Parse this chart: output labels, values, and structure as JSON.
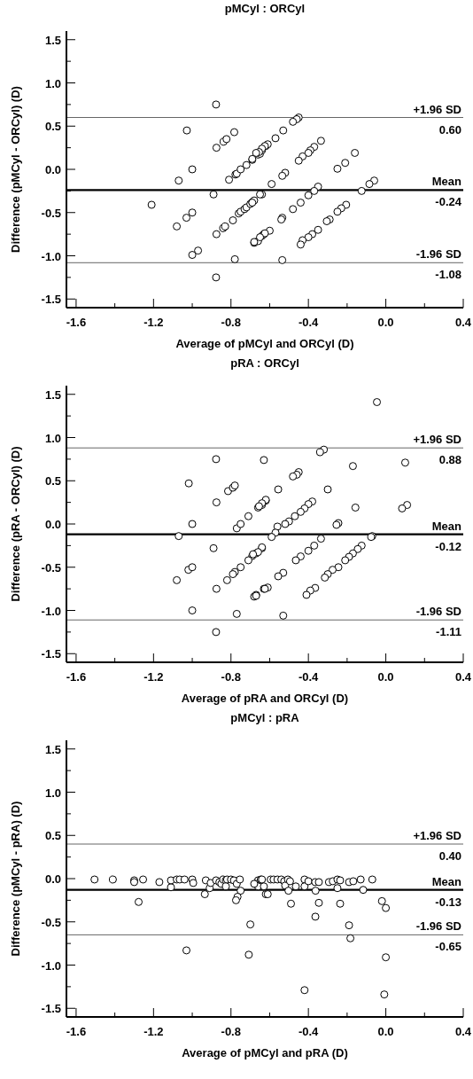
{
  "chart_data": [
    {
      "type": "scatter",
      "title": "pMCyl : ORCyl",
      "xlabel": "Average of pMCyl and ORCyl (D)",
      "ylabel": "Difference (pMCyl - ORCyl) (D)",
      "marker": "circle",
      "grid": false,
      "xlim": [
        -1.65,
        0.4
      ],
      "ylim": [
        -1.6,
        1.6
      ],
      "xticks": [
        -1.6,
        {
          "value": -1.4,
          "label": null
        },
        -1.2,
        {
          "value": -1.0,
          "label": null
        },
        -0.8,
        {
          "value": -0.6,
          "label": null
        },
        -0.4,
        {
          "value": -0.2,
          "label": null
        },
        {
          "value": 0,
          "label": "0.0"
        },
        {
          "value": 0.2,
          "label": null
        },
        0.4
      ],
      "yticks": [
        -1.5,
        {
          "value": -1.25,
          "label": null
        },
        {
          "value": -1,
          "label": "-1.0"
        },
        {
          "value": -0.75,
          "label": null
        },
        -0.5,
        {
          "value": -0.25,
          "label": null
        },
        {
          "value": 0,
          "label": "0.0"
        },
        {
          "value": 0.25,
          "label": null
        },
        0.5,
        {
          "value": 0.75,
          "label": null
        },
        {
          "value": 1,
          "label": "1.0"
        },
        {
          "value": 1.25,
          "label": null
        },
        1.5
      ],
      "annotations": [
        {
          "text": "0.60",
          "y": 0.6
        },
        {
          "text": "-0.24",
          "y": -0.24
        },
        {
          "text": "-1.08",
          "y": -1.08
        }
      ],
      "ref_lines": [
        {
          "axis": "y",
          "value": 0.6,
          "label": "+1.96 SD",
          "color": "#666666"
        },
        {
          "axis": "y",
          "value": -0.24,
          "label": "Mean",
          "color": "#000000"
        },
        {
          "axis": "y",
          "value": -1.08,
          "label": "-1.96 SD",
          "color": "#666666"
        }
      ],
      "series": [
        {
          "color": "#000000",
          "x": [
            -0.877,
            -1.028,
            -0.875,
            -0.838,
            -0.823,
            -0.783,
            -1.0,
            -1.07,
            -0.81,
            -0.777,
            -0.77,
            -0.75,
            -0.72,
            -0.69,
            -0.66,
            -0.65,
            -0.64,
            -0.62,
            -1.21,
            -0.89,
            -0.64,
            -1.0,
            -1.03,
            -1.08,
            -0.875,
            -0.84,
            -0.83,
            -0.79,
            -0.76,
            -0.75,
            -0.73,
            -0.72,
            -0.7,
            -0.69,
            -0.68,
            -1.0,
            -0.97,
            -0.78,
            -0.877,
            -0.68,
            -0.66,
            -0.64,
            -0.63,
            -0.45,
            -0.46,
            -0.48,
            -0.53,
            -0.57,
            -0.61,
            -0.625,
            -0.64,
            -0.655,
            -0.67,
            -0.69,
            -0.335,
            -0.37,
            -0.39,
            -0.4,
            -0.43,
            -0.45,
            -0.52,
            -0.535,
            -0.59,
            -0.65,
            -0.69,
            -0.16,
            -0.21,
            -0.25,
            -0.06,
            -0.085,
            -0.125,
            -0.35,
            -0.37,
            -0.4,
            -0.44,
            -0.48,
            -0.535,
            -0.54,
            -0.6,
            -0.625,
            -0.65,
            -0.68,
            -0.205,
            -0.23,
            -0.25,
            -0.29,
            -0.305,
            -0.35,
            -0.38,
            -0.4,
            -0.43,
            -0.44,
            -0.535
          ],
          "values": [
            0.75,
            0.45,
            0.25,
            0.32,
            0.35,
            0.43,
            0.0,
            -0.13,
            -0.12,
            -0.06,
            -0.05,
            0.0,
            0.05,
            0.11,
            0.17,
            0.18,
            0.22,
            0.27,
            -0.41,
            -0.29,
            -0.29,
            -0.5,
            -0.56,
            -0.66,
            -0.75,
            -0.68,
            -0.66,
            -0.59,
            -0.51,
            -0.49,
            -0.46,
            -0.44,
            -0.4,
            -0.38,
            -0.36,
            -0.99,
            -0.94,
            -1.04,
            -1.25,
            -0.85,
            -0.83,
            -0.77,
            -0.75,
            0.6,
            0.58,
            0.55,
            0.45,
            0.36,
            0.29,
            0.27,
            0.24,
            0.2,
            0.19,
            0.12,
            0.33,
            0.26,
            0.22,
            0.19,
            0.15,
            0.1,
            -0.04,
            -0.075,
            -0.17,
            -0.29,
            -0.385,
            0.19,
            0.075,
            0.007,
            -0.13,
            -0.17,
            -0.25,
            -0.2,
            -0.25,
            -0.3,
            -0.385,
            -0.46,
            -0.56,
            -0.58,
            -0.71,
            -0.74,
            -0.785,
            -0.84,
            -0.41,
            -0.45,
            -0.49,
            -0.58,
            -0.6,
            -0.7,
            -0.75,
            -0.785,
            -0.82,
            -0.87,
            -1.05
          ]
        }
      ]
    },
    {
      "type": "scatter",
      "title": "pRA : ORCyl",
      "xlabel": "Average of pRA and ORCyl (D)",
      "ylabel": "Difference (pRA - ORCyl) (D)",
      "marker": "circle",
      "grid": false,
      "xlim": [
        -1.65,
        0.4
      ],
      "ylim": [
        -1.6,
        1.6
      ],
      "xticks": [
        -1.6,
        {
          "value": -1.4,
          "label": null
        },
        -1.2,
        {
          "value": -1.0,
          "label": null
        },
        -0.8,
        {
          "value": -0.6,
          "label": null
        },
        -0.4,
        {
          "value": -0.2,
          "label": null
        },
        {
          "value": 0,
          "label": "0.0"
        },
        {
          "value": 0.2,
          "label": null
        },
        0.4
      ],
      "yticks": [
        -1.5,
        {
          "value": -1.25,
          "label": null
        },
        {
          "value": -1,
          "label": "-1.0"
        },
        {
          "value": -0.75,
          "label": null
        },
        -0.5,
        {
          "value": -0.25,
          "label": null
        },
        {
          "value": 0,
          "label": "0.0"
        },
        {
          "value": 0.25,
          "label": null
        },
        0.5,
        {
          "value": 0.75,
          "label": null
        },
        {
          "value": 1,
          "label": "1.0"
        },
        {
          "value": 1.25,
          "label": null
        },
        1.5
      ],
      "annotations": [
        {
          "text": "0.88",
          "y": 0.88
        },
        {
          "text": "-0.12",
          "y": -0.12
        },
        {
          "text": "-1.11",
          "y": -1.11
        }
      ],
      "ref_lines": [
        {
          "axis": "y",
          "value": 0.88,
          "label": "+1.96 SD",
          "color": "#666666"
        },
        {
          "axis": "y",
          "value": -0.12,
          "label": "Mean",
          "color": "#000000"
        },
        {
          "axis": "y",
          "value": -1.11,
          "label": "-1.96 SD",
          "color": "#666666"
        }
      ],
      "series": [
        {
          "color": "#000000",
          "x": [
            -0.877,
            -1.018,
            -0.875,
            -0.815,
            -0.79,
            -0.78,
            -1.0,
            -1.07,
            -0.77,
            -0.75,
            -0.71,
            -0.66,
            -0.64,
            -0.62,
            -0.63,
            -0.89,
            -0.64,
            -0.67,
            -0.69,
            -0.71,
            -0.75,
            -0.78,
            -0.79,
            -0.82,
            -1.02,
            -1.0,
            -1.08,
            -0.875,
            -1.0,
            -0.77,
            -0.877,
            -0.68,
            -0.67,
            -0.63,
            -0.046,
            -0.32,
            -0.34,
            -0.17,
            0.1,
            -0.45,
            -0.46,
            -0.48,
            -0.556,
            -0.3,
            -0.62,
            -0.64,
            -0.655,
            -0.38,
            -0.4,
            -0.42,
            -0.44,
            -0.47,
            -0.5,
            -0.52,
            -0.56,
            -0.57,
            -0.59,
            -0.157,
            -0.245,
            -0.255,
            0.11,
            0.084,
            -0.07,
            -0.076,
            -0.335,
            -0.37,
            -0.4,
            -0.44,
            -0.465,
            -0.53,
            -0.556,
            -0.61,
            -0.625,
            -0.67,
            -0.64,
            -0.66,
            -0.686,
            -0.125,
            -0.145,
            -0.17,
            -0.19,
            -0.21,
            -0.245,
            -0.275,
            -0.3,
            -0.315,
            -0.365,
            -0.39,
            -0.41,
            -0.53
          ],
          "values": [
            0.75,
            0.47,
            0.25,
            0.38,
            0.42,
            0.445,
            0.0,
            -0.14,
            -0.05,
            0.0,
            0.09,
            0.19,
            0.22,
            0.27,
            0.74,
            -0.28,
            -0.28,
            -0.34,
            -0.37,
            -0.42,
            -0.5,
            -0.555,
            -0.58,
            -0.65,
            -0.53,
            -0.5,
            -0.65,
            -0.75,
            -1.0,
            -1.04,
            -1.25,
            -0.84,
            -0.82,
            -0.75,
            1.41,
            0.86,
            0.83,
            0.67,
            0.71,
            0.6,
            0.57,
            0.55,
            0.4,
            0.4,
            0.28,
            0.24,
            0.205,
            0.26,
            0.23,
            0.18,
            0.14,
            0.09,
            0.03,
            0.0,
            -0.03,
            -0.1,
            -0.15,
            0.19,
            0.01,
            -0.01,
            0.22,
            0.18,
            -0.14,
            -0.15,
            -0.17,
            -0.25,
            -0.31,
            -0.375,
            -0.42,
            -0.565,
            -0.605,
            -0.735,
            -0.75,
            -0.83,
            -0.27,
            -0.325,
            -0.35,
            -0.25,
            -0.29,
            -0.34,
            -0.38,
            -0.42,
            -0.5,
            -0.53,
            -0.58,
            -0.62,
            -0.74,
            -0.77,
            -0.82,
            -1.06
          ]
        }
      ]
    },
    {
      "type": "scatter",
      "title": "pMCyl : pRA",
      "xlabel": "Average of pMCyl and pRA (D)",
      "ylabel": "Difference (pMCyl - pRA) (D)",
      "marker": "circle",
      "grid": false,
      "xlim": [
        -1.65,
        0.4
      ],
      "ylim": [
        -1.6,
        1.6
      ],
      "xticks": [
        -1.6,
        {
          "value": -1.4,
          "label": null
        },
        -1.2,
        {
          "value": -1.0,
          "label": null
        },
        -0.8,
        {
          "value": -0.6,
          "label": null
        },
        -0.4,
        {
          "value": -0.2,
          "label": null
        },
        {
          "value": 0,
          "label": "0.0"
        },
        {
          "value": 0.2,
          "label": null
        },
        0.4
      ],
      "yticks": [
        -1.5,
        {
          "value": -1.25,
          "label": null
        },
        {
          "value": -1,
          "label": "-1.0"
        },
        {
          "value": -0.75,
          "label": null
        },
        -0.5,
        {
          "value": -0.25,
          "label": null
        },
        {
          "value": 0,
          "label": "0.0"
        },
        {
          "value": 0.25,
          "label": null
        },
        0.5,
        {
          "value": 0.75,
          "label": null
        },
        {
          "value": 1,
          "label": "1.0"
        },
        {
          "value": 1.25,
          "label": null
        },
        1.5
      ],
      "annotations": [
        {
          "text": "0.40",
          "y": 0.4
        },
        {
          "text": "-0.13",
          "y": -0.13
        },
        {
          "text": "-0.65",
          "y": -0.65
        }
      ],
      "ref_lines": [
        {
          "axis": "y",
          "value": 0.4,
          "label": "+1.96 SD",
          "color": "#666666"
        },
        {
          "axis": "y",
          "value": -0.13,
          "label": "Mean",
          "color": "#000000"
        },
        {
          "axis": "y",
          "value": -0.65,
          "label": "-1.96 SD",
          "color": "#666666"
        }
      ],
      "series": [
        {
          "color": "#000000",
          "x": [
            -1.505,
            -1.41,
            -1.3,
            -1.3,
            -1.254,
            -1.277,
            -1.17,
            -1.11,
            -1.11,
            -1.08,
            -1.065,
            -1.04,
            -1.0,
            -0.995,
            -1.03,
            -0.935,
            -0.93,
            -0.91,
            -0.905,
            -0.877,
            -0.86,
            -0.85,
            -0.84,
            -0.826,
            -0.82,
            -0.8,
            -0.826,
            -0.785,
            -0.77,
            -0.754,
            -0.75,
            -0.766,
            -0.774,
            -0.7,
            -0.708,
            -0.66,
            -0.675,
            -0.66,
            -0.646,
            -0.63,
            -0.62,
            -0.68,
            -0.64,
            -0.61,
            -0.595,
            -0.58,
            -0.56,
            -0.54,
            -0.525,
            -0.52,
            -0.506,
            -0.495,
            -0.503,
            -0.49,
            -0.465,
            -0.42,
            -0.42,
            -0.4,
            -0.365,
            -0.346,
            -0.363,
            -0.346,
            -0.294,
            -0.274,
            -0.25,
            -0.25,
            -0.236,
            -0.236,
            -0.19,
            -0.168,
            -0.13,
            -0.117,
            -0.07,
            -0.364,
            -0.19,
            -0.183,
            -0.02,
            0.0,
            0.0,
            -0.42,
            -0.008
          ],
          "values": [
            -0.01,
            -0.01,
            -0.02,
            -0.04,
            -0.01,
            -0.27,
            -0.04,
            -0.1,
            -0.02,
            -0.01,
            -0.01,
            -0.01,
            -0.01,
            -0.05,
            -0.83,
            -0.18,
            -0.02,
            -0.11,
            -0.05,
            -0.02,
            -0.04,
            -0.06,
            -0.01,
            -0.02,
            -0.01,
            -0.01,
            -0.09,
            -0.02,
            -0.06,
            -0.01,
            -0.14,
            -0.21,
            -0.25,
            -0.53,
            -0.88,
            -0.02,
            -0.06,
            -0.09,
            -0.01,
            -0.09,
            -0.18,
            -0.06,
            -0.01,
            -0.18,
            -0.01,
            -0.01,
            -0.01,
            -0.01,
            -0.03,
            -0.08,
            -0.01,
            -0.03,
            -0.14,
            -0.29,
            -0.09,
            -0.01,
            -0.09,
            -0.03,
            -0.04,
            -0.04,
            -0.14,
            -0.28,
            -0.04,
            -0.03,
            -0.01,
            -0.11,
            -0.02,
            -0.29,
            -0.04,
            -0.03,
            -0.01,
            -0.13,
            -0.01,
            -0.44,
            -0.54,
            -0.69,
            -0.26,
            -0.34,
            -0.91,
            -1.29,
            -1.34
          ]
        }
      ]
    }
  ]
}
